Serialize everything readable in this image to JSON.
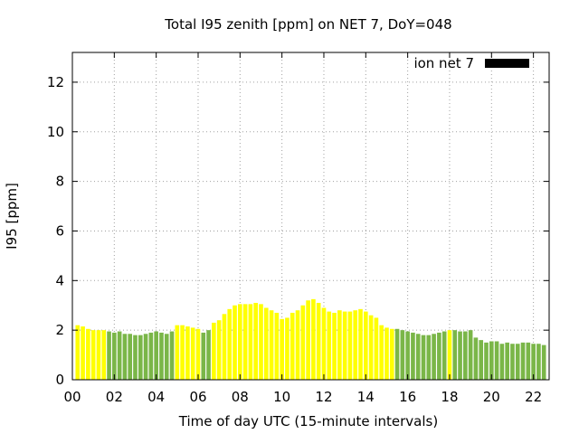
{
  "chart_data": {
    "type": "bar",
    "title": "Total I95 zenith [ppm] on NET 7, DoY=048",
    "xlabel": "Time of day UTC (15-minute intervals)",
    "ylabel": "I95 [ppm]",
    "xlim": [
      0,
      22.75
    ],
    "ylim": [
      0,
      13.2
    ],
    "x_ticks": [
      "00",
      "02",
      "04",
      "06",
      "08",
      "10",
      "12",
      "14",
      "16",
      "18",
      "20",
      "22"
    ],
    "y_ticks": [
      "0",
      "2",
      "4",
      "6",
      "8",
      "10",
      "12"
    ],
    "grid": true,
    "legend": {
      "label": "ion net 7",
      "placement": "top-right"
    },
    "colors": {
      "yellow": "#ffff00",
      "green": "#7ab648",
      "legend_swatch": "#000000"
    },
    "series": [
      {
        "name": "ion net 7",
        "x": [
          0.25,
          0.5,
          0.75,
          1.0,
          1.25,
          1.5,
          1.75,
          2.0,
          2.25,
          2.5,
          2.75,
          3.0,
          3.25,
          3.5,
          3.75,
          4.0,
          4.25,
          4.5,
          4.75,
          5.0,
          5.25,
          5.5,
          5.75,
          6.0,
          6.25,
          6.5,
          6.75,
          7.0,
          7.25,
          7.5,
          7.75,
          8.0,
          8.25,
          8.5,
          8.75,
          9.0,
          9.25,
          9.5,
          9.75,
          10.0,
          10.25,
          10.5,
          10.75,
          11.0,
          11.25,
          11.5,
          11.75,
          12.0,
          12.25,
          12.5,
          12.75,
          13.0,
          13.25,
          13.5,
          13.75,
          14.0,
          14.25,
          14.5,
          14.75,
          15.0,
          15.25,
          15.5,
          15.75,
          16.0,
          16.25,
          16.5,
          16.75,
          17.0,
          17.25,
          17.5,
          17.75,
          18.0,
          18.25,
          18.5,
          18.75,
          19.0,
          19.25,
          19.5,
          19.75,
          20.0,
          20.25,
          20.5,
          20.75,
          21.0,
          21.25,
          21.5,
          21.75,
          22.0,
          22.25,
          22.5
        ],
        "values": [
          2.2,
          2.15,
          2.05,
          2.0,
          2.0,
          2.0,
          1.95,
          1.9,
          1.95,
          1.85,
          1.85,
          1.8,
          1.8,
          1.85,
          1.9,
          1.95,
          1.9,
          1.85,
          1.95,
          2.2,
          2.2,
          2.15,
          2.1,
          2.05,
          1.9,
          2.0,
          2.3,
          2.4,
          2.65,
          2.85,
          3.0,
          3.05,
          3.05,
          3.05,
          3.1,
          3.05,
          2.9,
          2.8,
          2.7,
          2.45,
          2.5,
          2.7,
          2.8,
          3.0,
          3.2,
          3.25,
          3.1,
          2.9,
          2.75,
          2.7,
          2.8,
          2.75,
          2.75,
          2.8,
          2.85,
          2.75,
          2.6,
          2.5,
          2.2,
          2.1,
          2.05,
          2.05,
          2.0,
          1.95,
          1.9,
          1.85,
          1.8,
          1.8,
          1.85,
          1.9,
          1.95,
          2.0,
          2.0,
          1.95,
          1.95,
          2.0,
          1.7,
          1.6,
          1.5,
          1.55,
          1.55,
          1.45,
          1.5,
          1.45,
          1.45,
          1.5,
          1.5,
          1.45,
          1.45,
          1.4
        ],
        "bar_colors": [
          "yellow",
          "yellow",
          "yellow",
          "yellow",
          "yellow",
          "yellow",
          "green",
          "green",
          "green",
          "green",
          "green",
          "green",
          "green",
          "green",
          "green",
          "green",
          "green",
          "green",
          "green",
          "yellow",
          "yellow",
          "yellow",
          "yellow",
          "yellow",
          "green",
          "green",
          "yellow",
          "yellow",
          "yellow",
          "yellow",
          "yellow",
          "yellow",
          "yellow",
          "yellow",
          "yellow",
          "yellow",
          "yellow",
          "yellow",
          "yellow",
          "yellow",
          "yellow",
          "yellow",
          "yellow",
          "yellow",
          "yellow",
          "yellow",
          "yellow",
          "yellow",
          "yellow",
          "yellow",
          "yellow",
          "yellow",
          "yellow",
          "yellow",
          "yellow",
          "yellow",
          "yellow",
          "yellow",
          "yellow",
          "yellow",
          "yellow",
          "green",
          "green",
          "green",
          "green",
          "green",
          "green",
          "green",
          "green",
          "green",
          "green",
          "yellow",
          "green",
          "green",
          "green",
          "green",
          "green",
          "green",
          "green",
          "green",
          "green",
          "green",
          "green",
          "green",
          "green",
          "green",
          "green",
          "green",
          "green",
          "green"
        ]
      }
    ]
  }
}
